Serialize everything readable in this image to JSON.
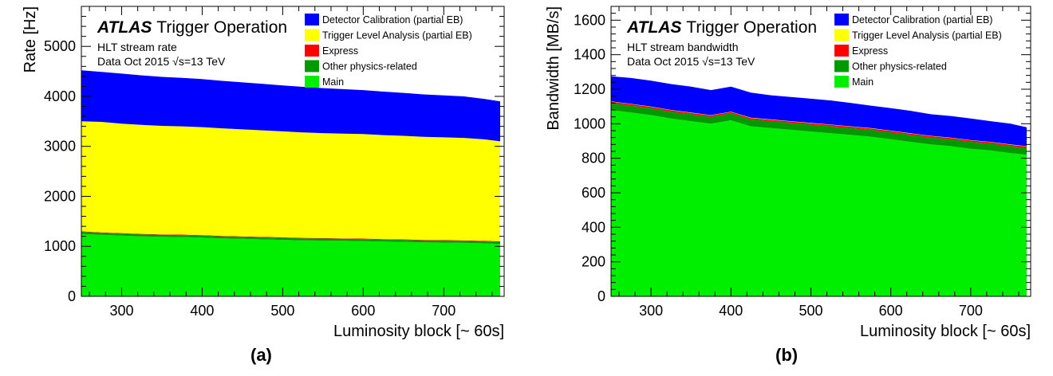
{
  "panels": [
    {
      "sublabel": "(a)",
      "chart_data": {
        "type": "area",
        "stacked": true,
        "experiment": "ATLAS",
        "title": "Trigger Operation",
        "subtitle_lines": [
          "HLT stream rate",
          "Data Oct 2015 √s=13 TeV"
        ],
        "xlabel": "Luminosity block [~ 60s]",
        "ylabel": "Rate [Hz]",
        "xlim": [
          250,
          775
        ],
        "ylim": [
          0,
          5800
        ],
        "xticks": [
          300,
          400,
          500,
          600,
          700
        ],
        "yticks": [
          0,
          1000,
          2000,
          3000,
          4000,
          5000
        ],
        "legend_position": "top-right",
        "x": [
          250,
          275,
          300,
          325,
          350,
          375,
          400,
          425,
          450,
          475,
          500,
          525,
          550,
          575,
          600,
          625,
          650,
          675,
          700,
          725,
          750,
          770
        ],
        "series": [
          {
            "name": "Main",
            "color": "#00ee00",
            "values": [
              1250,
              1230,
              1215,
              1200,
              1190,
              1185,
              1175,
              1160,
              1150,
              1140,
              1130,
              1120,
              1115,
              1110,
              1105,
              1095,
              1090,
              1080,
              1075,
              1070,
              1060,
              1050
            ]
          },
          {
            "name": "Other physics-related",
            "color": "#009900",
            "values": [
              40,
              40,
              40,
              40,
              40,
              40,
              40,
              40,
              40,
              40,
              40,
              40,
              40,
              40,
              40,
              40,
              40,
              40,
              40,
              40,
              40,
              40
            ]
          },
          {
            "name": "Express",
            "color": "#ff0000",
            "values": [
              10,
              10,
              10,
              10,
              10,
              10,
              10,
              10,
              10,
              10,
              10,
              10,
              10,
              10,
              10,
              10,
              10,
              10,
              10,
              10,
              10,
              10
            ]
          },
          {
            "name": "Trigger Level Analysis (partial EB)",
            "color": "#ffff00",
            "values": [
              2200,
              2210,
              2190,
              2180,
              2170,
              2165,
              2160,
              2150,
              2140,
              2130,
              2120,
              2110,
              2100,
              2095,
              2090,
              2080,
              2070,
              2060,
              2055,
              2050,
              2030,
              2000
            ]
          },
          {
            "name": "Detector Calibration (partial EB)",
            "color": "#0000ff",
            "values": [
              1020,
              1000,
              1000,
              990,
              980,
              970,
              960,
              950,
              940,
              930,
              920,
              910,
              900,
              890,
              880,
              870,
              860,
              850,
              840,
              830,
              810,
              800
            ]
          }
        ]
      }
    },
    {
      "sublabel": "(b)",
      "chart_data": {
        "type": "area",
        "stacked": true,
        "experiment": "ATLAS",
        "title": "Trigger Operation",
        "subtitle_lines": [
          "HLT stream bandwidth",
          "Data Oct 2015 √s=13 TeV"
        ],
        "xlabel": "Luminosity block [~ 60s]",
        "ylabel": "Bandwidth [MB/s]",
        "xlim": [
          250,
          775
        ],
        "ylim": [
          0,
          1680
        ],
        "xticks": [
          300,
          400,
          500,
          600,
          700
        ],
        "yticks": [
          0,
          200,
          400,
          600,
          800,
          1000,
          1200,
          1400,
          1600
        ],
        "legend_position": "top-right",
        "x": [
          250,
          275,
          300,
          325,
          350,
          375,
          400,
          425,
          450,
          475,
          500,
          525,
          550,
          575,
          600,
          625,
          650,
          675,
          700,
          725,
          750,
          770
        ],
        "series": [
          {
            "name": "Main",
            "color": "#00ee00",
            "values": [
              1080,
              1065,
              1050,
              1030,
              1015,
              1000,
              1020,
              985,
              975,
              965,
              955,
              945,
              935,
              925,
              910,
              895,
              880,
              870,
              855,
              845,
              830,
              820
            ]
          },
          {
            "name": "Other physics-related",
            "color": "#009900",
            "values": [
              40,
              40,
              40,
              40,
              40,
              40,
              40,
              40,
              40,
              40,
              40,
              40,
              40,
              40,
              40,
              40,
              40,
              40,
              40,
              40,
              40,
              40
            ]
          },
          {
            "name": "Express",
            "color": "#ff0000",
            "values": [
              8,
              8,
              8,
              8,
              8,
              8,
              8,
              8,
              8,
              8,
              8,
              8,
              8,
              8,
              8,
              8,
              8,
              8,
              8,
              8,
              8,
              8
            ]
          },
          {
            "name": "Trigger Level Analysis (partial EB)",
            "color": "#ffff00",
            "values": [
              2,
              2,
              2,
              2,
              2,
              2,
              2,
              2,
              2,
              2,
              2,
              2,
              2,
              2,
              2,
              2,
              2,
              2,
              2,
              2,
              2,
              2
            ]
          },
          {
            "name": "Detector Calibration (partial EB)",
            "color": "#0000ff",
            "values": [
              145,
              150,
              150,
              150,
              150,
              145,
              145,
              145,
              140,
              140,
              140,
              140,
              135,
              130,
              130,
              130,
              125,
              125,
              125,
              120,
              120,
              110
            ]
          }
        ]
      }
    }
  ]
}
